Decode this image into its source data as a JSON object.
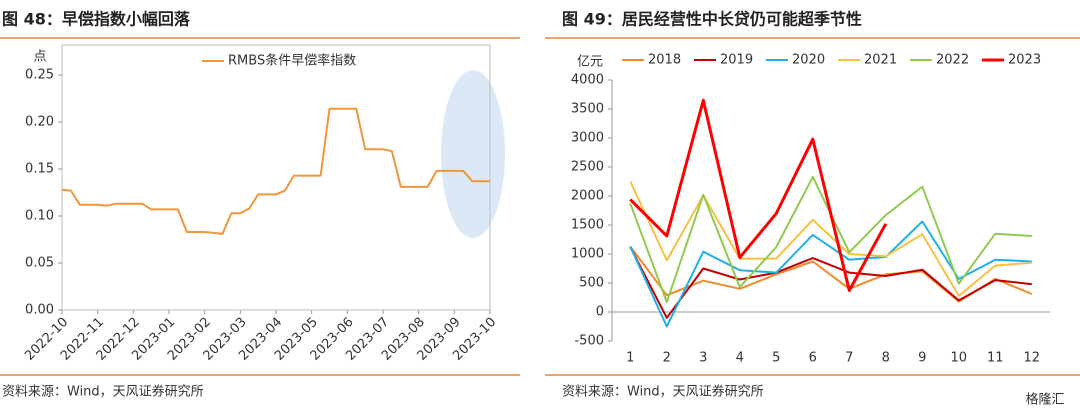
{
  "chart_data": [
    {
      "type": "line",
      "title": "图 48：早偿指数小幅回落",
      "y_label": "点",
      "source": "资料来源：Wind，天风证券研究所",
      "categories": [
        "2022-10",
        null,
        null,
        null,
        "2022-11",
        null,
        null,
        null,
        "2022-12",
        null,
        null,
        null,
        "2023-01",
        null,
        null,
        null,
        "2023-02",
        null,
        null,
        null,
        "2023-03",
        null,
        null,
        null,
        "2023-04",
        null,
        null,
        null,
        "2023-05",
        null,
        null,
        null,
        "2023-06",
        null,
        null,
        null,
        "2023-07",
        null,
        null,
        null,
        "2023-08",
        null,
        null,
        null,
        "2023-09",
        null,
        null,
        null,
        "2023-10"
      ],
      "series": [
        {
          "name": "RMBS条件早偿率指数",
          "color": "#f0963a",
          "values": [
            0.128,
            0.127,
            0.112,
            0.112,
            0.112,
            0.111,
            0.113,
            0.113,
            0.113,
            0.113,
            0.107,
            0.107,
            0.107,
            0.107,
            0.083,
            0.083,
            0.083,
            0.082,
            0.081,
            0.103,
            0.103,
            0.108,
            0.123,
            0.123,
            0.123,
            0.127,
            0.143,
            0.143,
            0.143,
            0.143,
            0.214,
            0.214,
            0.214,
            0.214,
            0.171,
            0.171,
            0.171,
            0.169,
            0.131,
            0.131,
            0.131,
            0.131,
            0.148,
            0.148,
            0.148,
            0.148,
            0.137,
            0.137,
            0.137
          ]
        }
      ],
      "ylim": [
        0,
        0.25
      ],
      "yticks": [
        {
          "value": 0,
          "label": "0.00"
        },
        0.05,
        {
          "value": 0.1,
          "label": "0.10"
        },
        0.15,
        {
          "value": 0.2,
          "label": "0.20"
        },
        0.25
      ],
      "grid": false,
      "frame": true
    },
    {
      "type": "line",
      "title": "图 49：居民经营性中长贷仍可能超季节性",
      "y_label": "亿元",
      "source": "资料来源：Wind，天风证券研究所",
      "watermark": "格隆汇",
      "categories": [
        "1",
        "2",
        "3",
        "4",
        "5",
        "6",
        "7",
        "8",
        "9",
        "10",
        "11",
        "12"
      ],
      "series": [
        {
          "name": "2018",
          "color": "#f08a2c",
          "values": [
            1130,
            290,
            540,
            400,
            650,
            870,
            400,
            650,
            700,
            180,
            570,
            310
          ]
        },
        {
          "name": "2019",
          "color": "#c00000",
          "values": [
            1120,
            -100,
            750,
            560,
            680,
            930,
            680,
            620,
            730,
            200,
            550,
            480
          ]
        },
        {
          "name": "2020",
          "color": "#1fb0e8",
          "values": [
            1130,
            -250,
            1040,
            720,
            680,
            1330,
            900,
            950,
            1560,
            570,
            900,
            870
          ]
        },
        {
          "name": "2021",
          "color": "#f9c040",
          "values": [
            2250,
            890,
            2010,
            920,
            920,
            1590,
            1000,
            960,
            1340,
            280,
            800,
            850
          ]
        },
        {
          "name": "2022",
          "color": "#92c94e",
          "values": [
            1870,
            170,
            2020,
            430,
            1120,
            2330,
            1030,
            1670,
            2160,
            490,
            1350,
            1310
          ]
        },
        {
          "name": "2023",
          "color": "#ff0000",
          "values": [
            1940,
            1310,
            3650,
            940,
            1700,
            2980,
            370,
            1520,
            null,
            null,
            null,
            null
          ]
        }
      ],
      "ylim": [
        -500,
        4000
      ],
      "yticks": [
        -500,
        0,
        500,
        1000,
        1500,
        2000,
        2500,
        3000,
        3500,
        4000
      ],
      "grid": false,
      "frame": false
    }
  ]
}
